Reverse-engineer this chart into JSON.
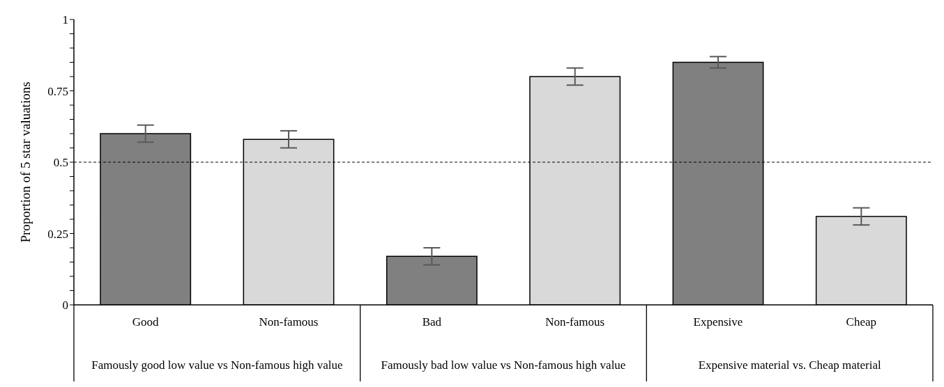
{
  "chart_data": {
    "type": "bar",
    "ylabel": "Proportion of 5 star valuations",
    "categories": [
      "Good",
      "Non-famous",
      "Bad",
      "Non-famous",
      "Expensive",
      "Cheap"
    ],
    "values": [
      0.6,
      0.58,
      0.17,
      0.8,
      0.85,
      0.31
    ],
    "errors": [
      0.03,
      0.03,
      0.03,
      0.03,
      0.02,
      0.03
    ],
    "colors": [
      "#808080",
      "#d9d9d9",
      "#808080",
      "#d9d9d9",
      "#808080",
      "#d9d9d9"
    ],
    "ylim": [
      0,
      1
    ],
    "yticks": [
      0,
      {
        "value": 0.05,
        "label": null
      },
      {
        "value": 0.1,
        "label": null
      },
      {
        "value": 0.15,
        "label": null
      },
      {
        "value": 0.2,
        "label": null
      },
      0.25,
      {
        "value": 0.3,
        "label": null
      },
      {
        "value": 0.35,
        "label": null
      },
      {
        "value": 0.4,
        "label": null
      },
      {
        "value": 0.45,
        "label": null
      },
      0.5,
      {
        "value": 0.55,
        "label": null
      },
      {
        "value": 0.6,
        "label": null
      },
      {
        "value": 0.65,
        "label": null
      },
      {
        "value": 0.7,
        "label": null
      },
      0.75,
      {
        "value": 0.8,
        "label": null
      },
      {
        "value": 0.85,
        "label": null
      },
      {
        "value": 0.9,
        "label": null
      },
      {
        "value": 0.95,
        "label": null
      },
      1
    ],
    "ref_lines": [
      {
        "axis": "y",
        "value": 0.5,
        "line_style": "dashed",
        "color": "#000000"
      }
    ],
    "annotations": [
      "Famously good low value vs Non-famous high value",
      "Famously bad low value vs Non-famous high value",
      "Expensive material vs. Cheap material"
    ],
    "grid": false,
    "legend": false
  }
}
